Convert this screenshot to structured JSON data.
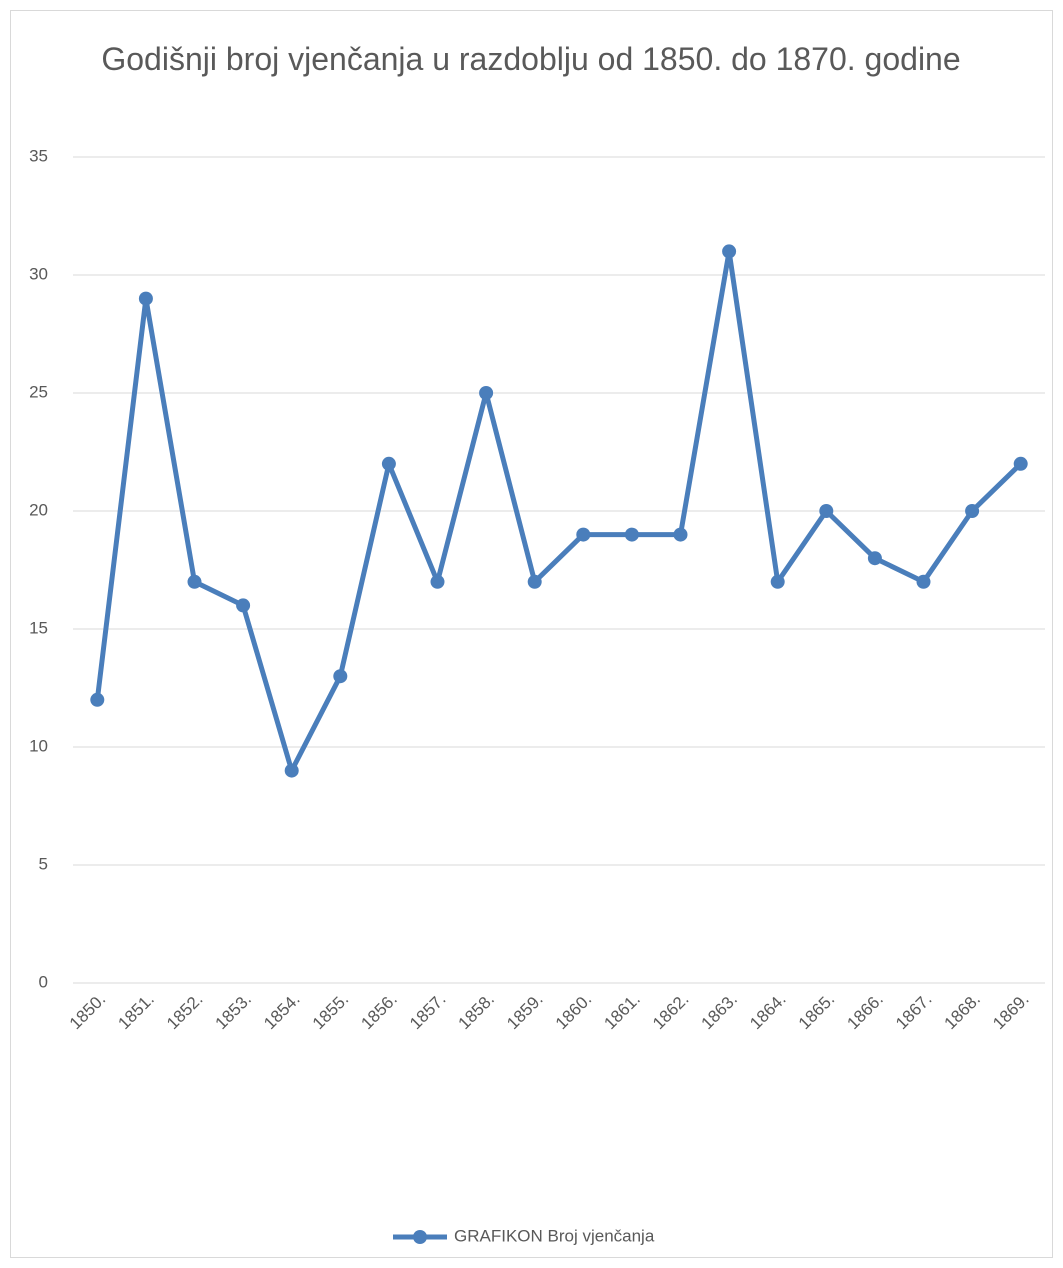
{
  "chart_data": {
    "type": "line",
    "title": "Godišnji broj vjenčanja u razdoblju od 1850. do 1870. godine",
    "categories": [
      "1850.",
      "1851.",
      "1852.",
      "1853.",
      "1854.",
      "1855.",
      "1856.",
      "1857.",
      "1858.",
      "1859.",
      "1860.",
      "1861.",
      "1862.",
      "1863.",
      "1864.",
      "1865.",
      "1866.",
      "1867.",
      "1868.",
      "1869."
    ],
    "series": [
      {
        "name": "GRAFIKON Broj vjenčanja",
        "color": "#4a7ebb",
        "values": [
          12,
          29,
          17,
          16,
          9,
          13,
          22,
          17,
          25,
          17,
          19,
          19,
          19,
          31,
          17,
          20,
          18,
          17,
          20,
          22
        ]
      }
    ],
    "ylim": [
      0,
      35
    ],
    "yticks": [
      0,
      5,
      10,
      15,
      20,
      25,
      30,
      35
    ],
    "grid": true,
    "legend": "bottom"
  }
}
